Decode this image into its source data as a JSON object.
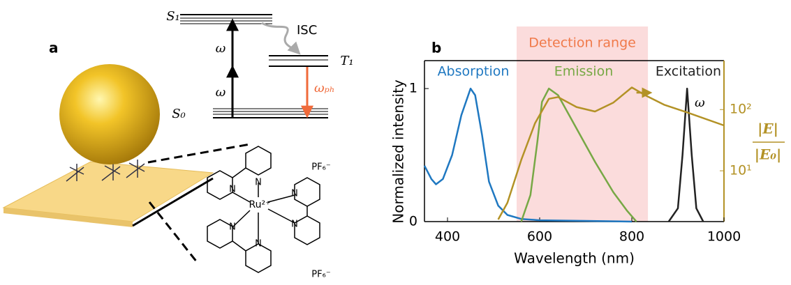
{
  "panel_a": {
    "label": "a",
    "levels": [
      "S₁",
      "T₁",
      "S₀"
    ],
    "excitation": [
      "ω",
      "ω"
    ],
    "isc": "ISC",
    "emission": "ωₚₕ",
    "molecule": {
      "center": "Ru²⁺",
      "atoms": [
        "N",
        "N",
        "N",
        "N",
        "N",
        "N"
      ],
      "counterions": [
        "PF₆⁻",
        "PF₆⁻"
      ]
    }
  },
  "chart_data": {
    "type": "line",
    "panel_label": "b",
    "xlabel": "Wavelength (nm)",
    "ylabel": "Normalized intensity",
    "y2label": {
      "numerator": "|E|",
      "denominator": "|E₀|"
    },
    "xlim": [
      350,
      1000
    ],
    "xticks": [
      400,
      600,
      800,
      1000
    ],
    "ylim": [
      0,
      1.21
    ],
    "yticks": [
      0,
      1
    ],
    "y2lim": [
      1.48,
      630
    ],
    "y2scale": "log",
    "y2ticks": [
      {
        "value": 10,
        "label": "10¹"
      },
      {
        "value": 100,
        "label": "10²"
      }
    ],
    "y2color": "#b39226",
    "detection_range": {
      "label": "Detection range",
      "from": 550,
      "to": 835,
      "color": "#fbdcdc"
    },
    "annotations": [
      "ω"
    ],
    "series": [
      {
        "name": "Absorption",
        "color": "#1f78c1",
        "x": [
          350,
          365,
          375,
          390,
          410,
          430,
          450,
          460,
          475,
          490,
          510,
          530,
          560,
          600,
          700,
          800
        ],
        "values": [
          0.42,
          0.32,
          0.28,
          0.32,
          0.5,
          0.8,
          1.0,
          0.95,
          0.65,
          0.3,
          0.12,
          0.05,
          0.02,
          0.01,
          0.005,
          0
        ]
      },
      {
        "name": "Emission",
        "color": "#77a845",
        "x": [
          560,
          580,
          595,
          605,
          620,
          640,
          680,
          720,
          760,
          790,
          810
        ],
        "values": [
          0,
          0.2,
          0.6,
          0.9,
          1.0,
          0.95,
          0.7,
          0.45,
          0.22,
          0.08,
          0
        ]
      },
      {
        "name": "Excitation",
        "color": "#222222",
        "x": [
          880,
          900,
          910,
          920,
          930,
          940,
          955
        ],
        "values": [
          0,
          0.1,
          0.5,
          1.0,
          0.5,
          0.1,
          0
        ]
      },
      {
        "color": "#b39226",
        "axis": "y2",
        "x": [
          510,
          530,
          560,
          590,
          620,
          640,
          680,
          720,
          760,
          800,
          830,
          870,
          920,
          1000
        ],
        "values": [
          1.6,
          3,
          15,
          60,
          150,
          160,
          110,
          93,
          130,
          230,
          170,
          120,
          90,
          55
        ]
      }
    ]
  }
}
